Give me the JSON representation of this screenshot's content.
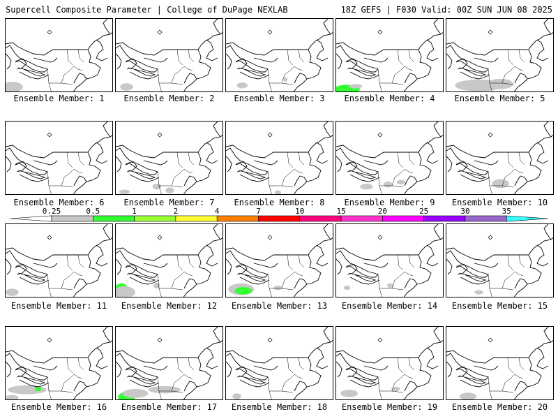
{
  "header": {
    "left_title": "Supercell Composite Parameter | College of DuPage NEXLAB",
    "right_title": "18Z GEFS | F030 Valid: 00Z SUN JUN 08 2025"
  },
  "members": [
    {
      "label": "Ensemble Member: 1",
      "blobs": [
        [
          0.06,
          0.92,
          0.1,
          0.07,
          "#c8c8c8"
        ]
      ]
    },
    {
      "label": "Ensemble Member: 2",
      "blobs": [
        [
          0.1,
          0.92,
          0.06,
          0.05,
          "#c8c8c8"
        ]
      ]
    },
    {
      "label": "Ensemble Member: 3",
      "blobs": [
        [
          0.55,
          0.82,
          0.02,
          0.03,
          "#c8c8c8"
        ],
        [
          0.15,
          0.9,
          0.05,
          0.04,
          "#c8c8c8"
        ]
      ]
    },
    {
      "label": "Ensemble Member: 4",
      "blobs": [
        [
          0.1,
          0.95,
          0.12,
          0.06,
          "#33ff33"
        ],
        [
          0.18,
          0.91,
          0.06,
          0.03,
          "#c8c8c8"
        ]
      ]
    },
    {
      "label": "Ensemble Member: 5",
      "blobs": [
        [
          0.3,
          0.9,
          0.22,
          0.08,
          "#c8c8c8"
        ],
        [
          0.55,
          0.88,
          0.06,
          0.05,
          "#33ff33"
        ],
        [
          0.5,
          0.88,
          0.12,
          0.07,
          "#c8c8c8"
        ]
      ]
    },
    {
      "label": "Ensemble Member: 6",
      "blobs": []
    },
    {
      "label": "Ensemble Member: 7",
      "blobs": [
        [
          0.08,
          0.95,
          0.05,
          0.03,
          "#c8c8c8"
        ],
        [
          0.38,
          0.88,
          0.04,
          0.04,
          "#c8c8c8"
        ],
        [
          0.5,
          0.93,
          0.04,
          0.04,
          "#c8c8c8"
        ]
      ]
    },
    {
      "label": "Ensemble Member: 8",
      "blobs": [
        [
          0.48,
          0.96,
          0.03,
          0.03,
          "#c8c8c8"
        ]
      ]
    },
    {
      "label": "Ensemble Member: 9",
      "blobs": [
        [
          0.28,
          0.88,
          0.06,
          0.04,
          "#c8c8c8"
        ],
        [
          0.48,
          0.85,
          0.04,
          0.04,
          "#c8c8c8"
        ],
        [
          0.6,
          0.82,
          0.04,
          0.03,
          "#c8c8c8"
        ]
      ]
    },
    {
      "label": "Ensemble Member: 10",
      "blobs": [
        [
          0.5,
          0.84,
          0.08,
          0.06,
          "#c8c8c8"
        ]
      ]
    },
    {
      "label": "Ensemble Member: 11",
      "blobs": [
        [
          0.06,
          0.92,
          0.06,
          0.05,
          "#c8c8c8"
        ]
      ]
    },
    {
      "label": "Ensemble Member: 12",
      "blobs": [
        [
          0.05,
          0.9,
          0.07,
          0.1,
          "#33ff33"
        ],
        [
          0.08,
          0.92,
          0.1,
          0.08,
          "#c8c8c8"
        ],
        [
          0.38,
          0.83,
          0.03,
          0.04,
          "#c8c8c8"
        ]
      ]
    },
    {
      "label": "Ensemble Member: 13",
      "blobs": [
        [
          0.14,
          0.88,
          0.12,
          0.08,
          "#c8c8c8"
        ],
        [
          0.16,
          0.9,
          0.08,
          0.05,
          "#33ff33"
        ],
        [
          0.48,
          0.86,
          0.04,
          0.03,
          "#c8c8c8"
        ]
      ]
    },
    {
      "label": "Ensemble Member: 14",
      "blobs": [
        [
          0.1,
          0.86,
          0.03,
          0.03,
          "#c8c8c8"
        ],
        [
          0.5,
          0.83,
          0.03,
          0.03,
          "#c8c8c8"
        ]
      ]
    },
    {
      "label": "Ensemble Member: 15",
      "blobs": [
        [
          0.3,
          0.92,
          0.04,
          0.03,
          "#c8c8c8"
        ]
      ]
    },
    {
      "label": "Ensemble Member: 16",
      "blobs": [
        [
          0.2,
          0.85,
          0.18,
          0.06,
          "#c8c8c8"
        ],
        [
          0.3,
          0.84,
          0.03,
          0.03,
          "#33ff33"
        ],
        [
          0.06,
          0.96,
          0.06,
          0.04,
          "#c8c8c8"
        ]
      ]
    },
    {
      "label": "Ensemble Member: 17",
      "blobs": [
        [
          0.1,
          0.95,
          0.08,
          0.07,
          "#33ff33"
        ],
        [
          0.18,
          0.9,
          0.12,
          0.06,
          "#c8c8c8"
        ],
        [
          0.45,
          0.85,
          0.15,
          0.05,
          "#c8c8c8"
        ]
      ]
    },
    {
      "label": "Ensemble Member: 18",
      "blobs": [
        [
          0.1,
          0.94,
          0.04,
          0.04,
          "#c8c8c8"
        ]
      ]
    },
    {
      "label": "Ensemble Member: 19",
      "blobs": [
        [
          0.12,
          0.9,
          0.08,
          0.05,
          "#c8c8c8"
        ],
        [
          0.55,
          0.84,
          0.04,
          0.03,
          "#c8c8c8"
        ]
      ]
    },
    {
      "label": "Ensemble Member: 20",
      "blobs": [
        [
          0.2,
          0.94,
          0.08,
          0.05,
          "#c8c8c8"
        ]
      ]
    }
  ],
  "legend": {
    "levels": [
      "0.25",
      "0.5",
      "1",
      "2",
      "4",
      "7",
      "10",
      "15",
      "20",
      "25",
      "30",
      "35"
    ],
    "colors": [
      "#c8c8c8",
      "#33ff33",
      "#99ff33",
      "#ffff33",
      "#ff8000",
      "#ff0000",
      "#ff0080",
      "#ff33cc",
      "#ff00ff",
      "#9900ff",
      "#9966cc",
      "#33ffff"
    ]
  }
}
